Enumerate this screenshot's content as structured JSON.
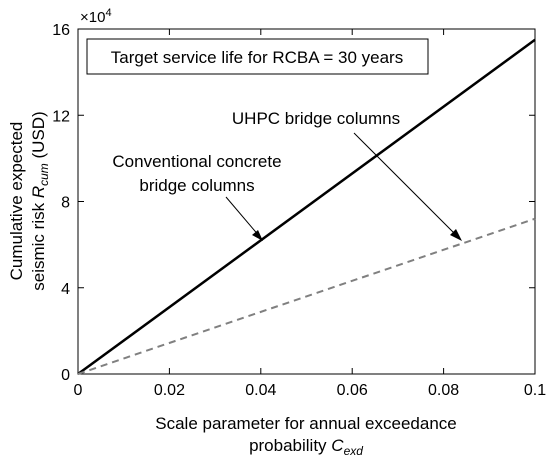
{
  "chart_data": {
    "type": "line",
    "exponent_base": "×10",
    "exponent_power": "4",
    "annotation_box": "Target service life for RCBA = 30 years",
    "xlabel_line1": "Scale parameter for annual exceedance",
    "xlabel_line2_text": "probability ",
    "xlabel_line2_symbol": "C",
    "xlabel_line2_sub": "exd",
    "ylabel_line1": "Cumulative expected",
    "ylabel_line2_text": "seismic risk ",
    "ylabel_line2_symbol": "R",
    "ylabel_line2_sub": "cum",
    "ylabel_line2_unit": " (USD)",
    "xlim": [
      0,
      0.1
    ],
    "ylim": [
      0,
      16
    ],
    "xticks": [
      0,
      0.02,
      0.04,
      0.06,
      0.08,
      0.1
    ],
    "xtick_labels": [
      "0",
      "0.02",
      "0.04",
      "0.06",
      "0.08",
      "0.1"
    ],
    "yticks": [
      0,
      4,
      8,
      12,
      16
    ],
    "ytick_labels": [
      "0",
      "4",
      "8",
      "12",
      "16"
    ],
    "series": [
      {
        "label_lines": [
          "Conventional concrete",
          "bridge columns"
        ],
        "x": [
          0,
          0.1
        ],
        "y": [
          0,
          15.5
        ],
        "color": "#000000",
        "dash": "solid"
      },
      {
        "label_lines": [
          "UHPC bridge columns"
        ],
        "x": [
          0,
          0.1
        ],
        "y": [
          0,
          7.2
        ],
        "color": "#808080",
        "dash": "dashed"
      }
    ]
  }
}
